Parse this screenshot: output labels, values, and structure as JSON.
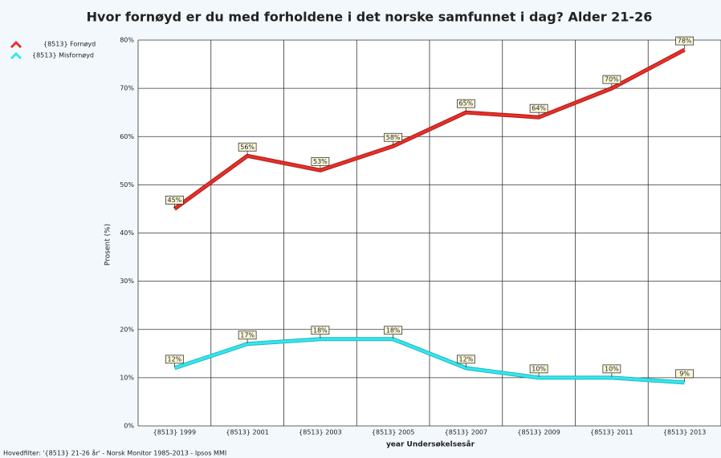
{
  "chart_data": {
    "type": "line",
    "title": "Hvor fornøyd er du med forholdene i det norske samfunnet i dag? Alder 21-26",
    "x_label": "year Undersøkelsesår",
    "y_label": "Prosent (%)",
    "footer": "Hovedfilter: '{8513} 21-26 år' - Norsk Monitor 1985-2013 - Ipsos MMI",
    "categories": [
      "{8513} 1999",
      "{8513} 2001",
      "{8513} 2003",
      "{8513} 2005",
      "{8513} 2007",
      "{8513} 2009",
      "{8513} 2011",
      "{8513} 2013"
    ],
    "series": [
      {
        "name": "{8513} Fornøyd",
        "color": "#e8302a",
        "values": [
          45,
          56,
          53,
          58,
          65,
          64,
          70,
          78
        ],
        "value_labels": [
          "45%",
          "56%",
          "53%",
          "58%",
          "65%",
          "64%",
          "70%",
          "78%"
        ]
      },
      {
        "name": "{8513} Misfornøyd",
        "color": "#36e6ee",
        "values": [
          12,
          17,
          18,
          18,
          12,
          10,
          10,
          9
        ],
        "value_labels": [
          "12%",
          "17%",
          "18%",
          "18%",
          "12%",
          "10%",
          "10%",
          "9%"
        ]
      }
    ],
    "ylim": [
      0,
      80
    ],
    "yticks": [
      {
        "value": 0,
        "label": "0%"
      },
      {
        "value": 10,
        "label": "10%"
      },
      {
        "value": 20,
        "label": "20%"
      },
      {
        "value": 30,
        "label": "30%"
      },
      {
        "value": 40,
        "label": "40%"
      },
      {
        "value": 50,
        "label": "50%"
      },
      {
        "value": 60,
        "label": "60%"
      },
      {
        "value": 70,
        "label": "70%"
      },
      {
        "value": 80,
        "label": "80%"
      }
    ],
    "grid": true,
    "legend": "top-left"
  }
}
